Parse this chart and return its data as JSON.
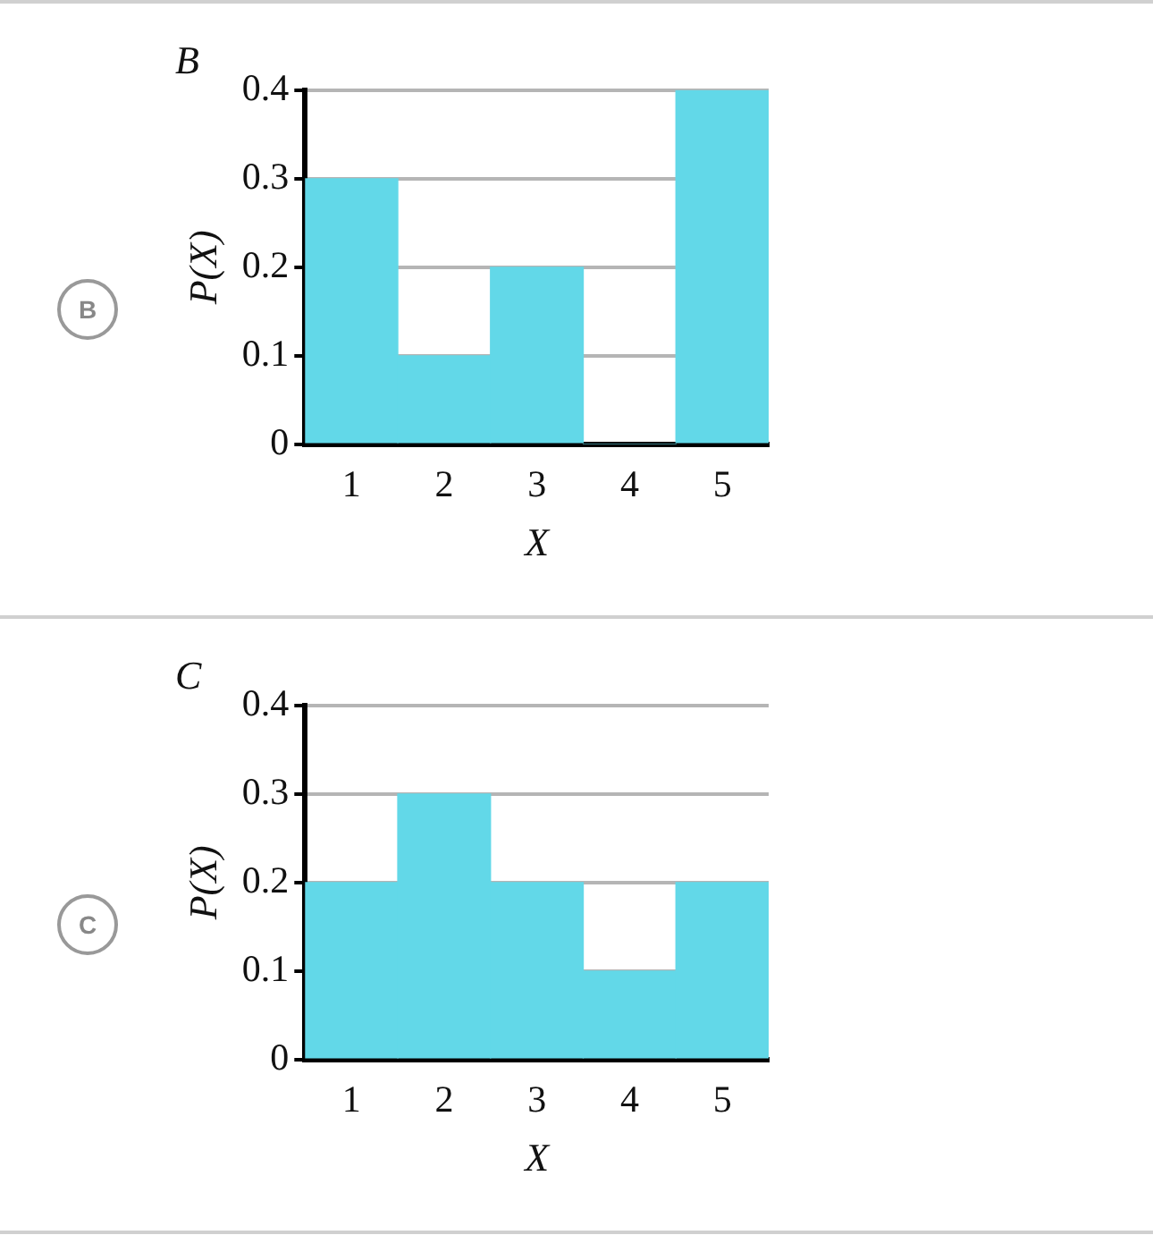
{
  "chart_data": [
    {
      "type": "bar",
      "title": "B",
      "xlabel": "X",
      "ylabel": "P(X)",
      "categories": [
        "1",
        "2",
        "3",
        "4",
        "5"
      ],
      "values": [
        0.3,
        0.1,
        0.2,
        0,
        0.4
      ],
      "color": "#62d8e8",
      "ylim": [
        0,
        0.4
      ],
      "yticks": [
        0,
        0.1,
        0.2,
        0.3,
        0.4
      ],
      "grid": "y",
      "legend": false,
      "annotations": [
        "B"
      ]
    },
    {
      "type": "bar",
      "title": "C",
      "xlabel": "X",
      "ylabel": "P(X)",
      "categories": [
        "1",
        "2",
        "3",
        "4",
        "5"
      ],
      "values": [
        0.2,
        0.3,
        0.2,
        0.1,
        0.2
      ],
      "color": "#62d8e8",
      "ylim": [
        0,
        0.4
      ],
      "yticks": [
        0,
        0.1,
        0.2,
        0.3,
        0.4
      ],
      "grid": "y",
      "legend": false,
      "annotations": [
        "C"
      ]
    }
  ]
}
